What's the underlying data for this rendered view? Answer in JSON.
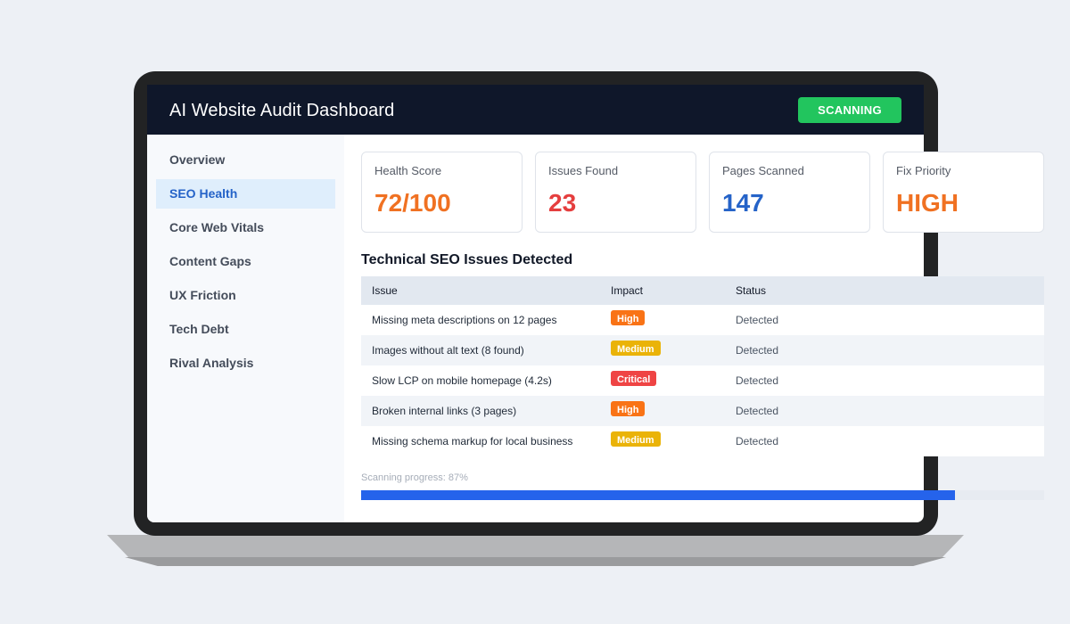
{
  "app": {
    "title": "AI Website Audit Dashboard",
    "status_label": "SCANNING"
  },
  "sidebar": {
    "items": [
      {
        "label": "Overview",
        "active": false
      },
      {
        "label": "SEO Health",
        "active": true
      },
      {
        "label": "Core Web Vitals",
        "active": false
      },
      {
        "label": "Content Gaps",
        "active": false
      },
      {
        "label": "UX Friction",
        "active": false
      },
      {
        "label": "Tech Debt",
        "active": false
      },
      {
        "label": "Rival Analysis",
        "active": false
      }
    ]
  },
  "cards": [
    {
      "label": "Health Score",
      "value": "72/100",
      "color": "#f07122"
    },
    {
      "label": "Issues Found",
      "value": "23",
      "color": "#e53e3e"
    },
    {
      "label": "Pages Scanned",
      "value": "147",
      "color": "#2563c8"
    },
    {
      "label": "Fix Priority",
      "value": "HIGH",
      "color": "#f07122"
    }
  ],
  "issues_table": {
    "title": "Technical SEO Issues Detected",
    "headers": [
      "Issue",
      "Impact",
      "Status"
    ],
    "rows": [
      {
        "issue": "Missing meta descriptions on 12 pages",
        "impact": "High",
        "impact_color": "#f97316",
        "status": "Detected"
      },
      {
        "issue": "Images without alt text (8 found)",
        "impact": "Medium",
        "impact_color": "#eab308",
        "status": "Detected"
      },
      {
        "issue": "Slow LCP on mobile homepage (4.2s)",
        "impact": "Critical",
        "impact_color": "#ef4444",
        "status": "Detected"
      },
      {
        "issue": "Broken internal links (3 pages)",
        "impact": "High",
        "impact_color": "#f97316",
        "status": "Detected"
      },
      {
        "issue": "Missing schema markup for local business",
        "impact": "Medium",
        "impact_color": "#eab308",
        "status": "Detected"
      }
    ]
  },
  "progress": {
    "label": "Scanning progress: 87%",
    "percent": 87
  }
}
